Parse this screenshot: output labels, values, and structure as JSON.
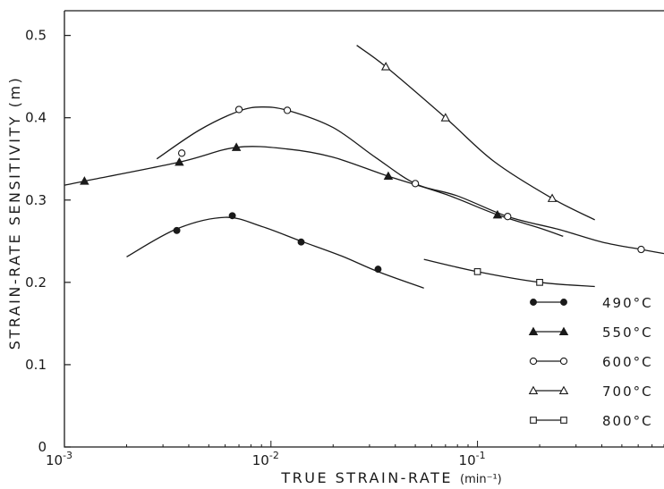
{
  "chart_data": {
    "type": "scatter",
    "title": "",
    "xlabel": "TRUE STRAIN-RATE",
    "xlabel_unit": "(min⁻¹)",
    "ylabel": "STRAIN-RATE SENSITIVITY (m)",
    "xscale": "log",
    "xlim": [
      0.001,
      0.8
    ],
    "ylim": [
      0,
      0.53
    ],
    "x_ticks": [
      {
        "value": 0.001,
        "base": "10",
        "exp": "-3"
      },
      {
        "value": 0.01,
        "base": "10",
        "exp": "-2"
      },
      {
        "value": 0.1,
        "base": "10",
        "exp": "-1"
      }
    ],
    "y_ticks": [
      {
        "value": 0,
        "label": "0"
      },
      {
        "value": 0.1,
        "label": "0.1"
      },
      {
        "value": 0.2,
        "label": "0.2"
      },
      {
        "value": 0.3,
        "label": "0.3"
      },
      {
        "value": 0.4,
        "label": "0.4"
      },
      {
        "value": 0.5,
        "label": "0.5"
      }
    ],
    "grid": false,
    "legend_position": "bottom-right",
    "series": [
      {
        "name": "490°C",
        "marker": "filled-circle",
        "points": [
          [
            0.0035,
            0.263
          ],
          [
            0.0065,
            0.281
          ],
          [
            0.014,
            0.249
          ],
          [
            0.033,
            0.216
          ]
        ],
        "curve": [
          [
            0.002,
            0.231
          ],
          [
            0.0035,
            0.265
          ],
          [
            0.006,
            0.279
          ],
          [
            0.009,
            0.268
          ],
          [
            0.014,
            0.25
          ],
          [
            0.022,
            0.232
          ],
          [
            0.033,
            0.213
          ],
          [
            0.055,
            0.193
          ]
        ]
      },
      {
        "name": "550°C",
        "marker": "filled-triangle",
        "points": [
          [
            0.00125,
            0.323
          ],
          [
            0.0036,
            0.346
          ],
          [
            0.0068,
            0.364
          ],
          [
            0.037,
            0.329
          ],
          [
            0.125,
            0.282
          ]
        ],
        "curve": [
          [
            0.001,
            0.318
          ],
          [
            0.00125,
            0.323
          ],
          [
            0.0036,
            0.346
          ],
          [
            0.0068,
            0.364
          ],
          [
            0.012,
            0.362
          ],
          [
            0.02,
            0.352
          ],
          [
            0.037,
            0.329
          ],
          [
            0.07,
            0.307
          ],
          [
            0.125,
            0.282
          ],
          [
            0.2,
            0.266
          ],
          [
            0.26,
            0.256
          ]
        ]
      },
      {
        "name": "600°C",
        "marker": "open-circle",
        "points": [
          [
            0.0037,
            0.357
          ],
          [
            0.007,
            0.41
          ],
          [
            0.012,
            0.409
          ],
          [
            0.05,
            0.32
          ],
          [
            0.14,
            0.28
          ],
          [
            0.62,
            0.24
          ]
        ],
        "curve": [
          [
            0.0028,
            0.35
          ],
          [
            0.0045,
            0.385
          ],
          [
            0.007,
            0.408
          ],
          [
            0.009,
            0.413
          ],
          [
            0.012,
            0.409
          ],
          [
            0.02,
            0.388
          ],
          [
            0.032,
            0.352
          ],
          [
            0.05,
            0.32
          ],
          [
            0.08,
            0.305
          ],
          [
            0.14,
            0.28
          ],
          [
            0.25,
            0.264
          ],
          [
            0.4,
            0.249
          ],
          [
            0.62,
            0.24
          ],
          [
            0.8,
            0.235
          ]
        ]
      },
      {
        "name": "700°C",
        "marker": "open-triangle",
        "points": [
          [
            0.036,
            0.462
          ],
          [
            0.07,
            0.4
          ],
          [
            0.23,
            0.302
          ]
        ],
        "curve": [
          [
            0.026,
            0.488
          ],
          [
            0.036,
            0.462
          ],
          [
            0.07,
            0.4
          ],
          [
            0.12,
            0.347
          ],
          [
            0.23,
            0.302
          ],
          [
            0.37,
            0.276
          ]
        ]
      },
      {
        "name": "800°C",
        "marker": "open-square",
        "points": [
          [
            0.1,
            0.213
          ],
          [
            0.2,
            0.2
          ]
        ],
        "curve": [
          [
            0.055,
            0.228
          ],
          [
            0.1,
            0.213
          ],
          [
            0.2,
            0.2
          ],
          [
            0.37,
            0.195
          ]
        ]
      }
    ]
  }
}
